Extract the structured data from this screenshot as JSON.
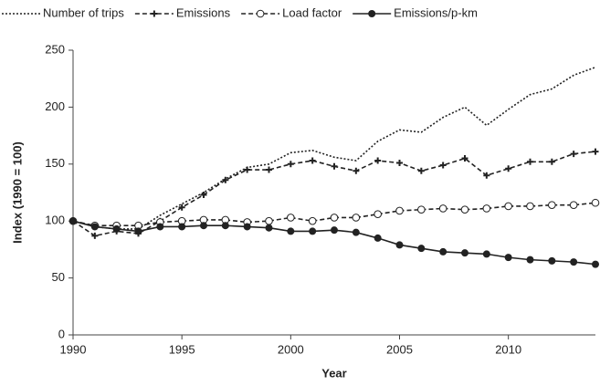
{
  "chart_data": {
    "type": "line",
    "x_label": "Year",
    "y_label": "Index (1990 = 100)",
    "x": [
      1990,
      1991,
      1992,
      1993,
      1994,
      1995,
      1996,
      1997,
      1998,
      1999,
      2000,
      2001,
      2002,
      2003,
      2004,
      2005,
      2006,
      2007,
      2008,
      2009,
      2010,
      2011,
      2012,
      2013,
      2014
    ],
    "xlim": [
      1990,
      2014
    ],
    "xticks": [
      1990,
      1995,
      2000,
      2005,
      2010
    ],
    "ylim": [
      0,
      250
    ],
    "yticks": [
      0,
      50,
      100,
      150,
      200,
      250
    ],
    "grid": false,
    "legend": "top",
    "series": [
      {
        "name": "Number of trips",
        "color": "#222222",
        "dash": "dotted",
        "marker": "none",
        "values": [
          100,
          95,
          93,
          93,
          105,
          115,
          125,
          137,
          147,
          150,
          160,
          162,
          156,
          153,
          170,
          180,
          178,
          191,
          200,
          184,
          198,
          211,
          216,
          228,
          235
        ]
      },
      {
        "name": "Emissions",
        "color": "#222222",
        "dash": "dashed",
        "marker": "plus",
        "values": [
          100,
          87,
          91,
          89,
          100,
          112,
          123,
          136,
          145,
          145,
          150,
          153,
          148,
          144,
          153,
          151,
          144,
          149,
          155,
          140,
          146,
          152,
          152,
          159,
          161
        ]
      },
      {
        "name": "Load factor",
        "color": "#222222",
        "dash": "dashed",
        "marker": "circle-open",
        "values": [
          100,
          96,
          96,
          96,
          99,
          100,
          101,
          101,
          99,
          100,
          103,
          100,
          103,
          103,
          106,
          109,
          110,
          111,
          110,
          111,
          113,
          113,
          114,
          114,
          116
        ]
      },
      {
        "name": "Emissions/p-km",
        "color": "#222222",
        "dash": "solid",
        "marker": "circle",
        "values": [
          100,
          95,
          93,
          91,
          95,
          95,
          96,
          96,
          95,
          94,
          91,
          91,
          92,
          90,
          85,
          79,
          76,
          73,
          72,
          71,
          68,
          66,
          65,
          64,
          62
        ]
      }
    ]
  }
}
